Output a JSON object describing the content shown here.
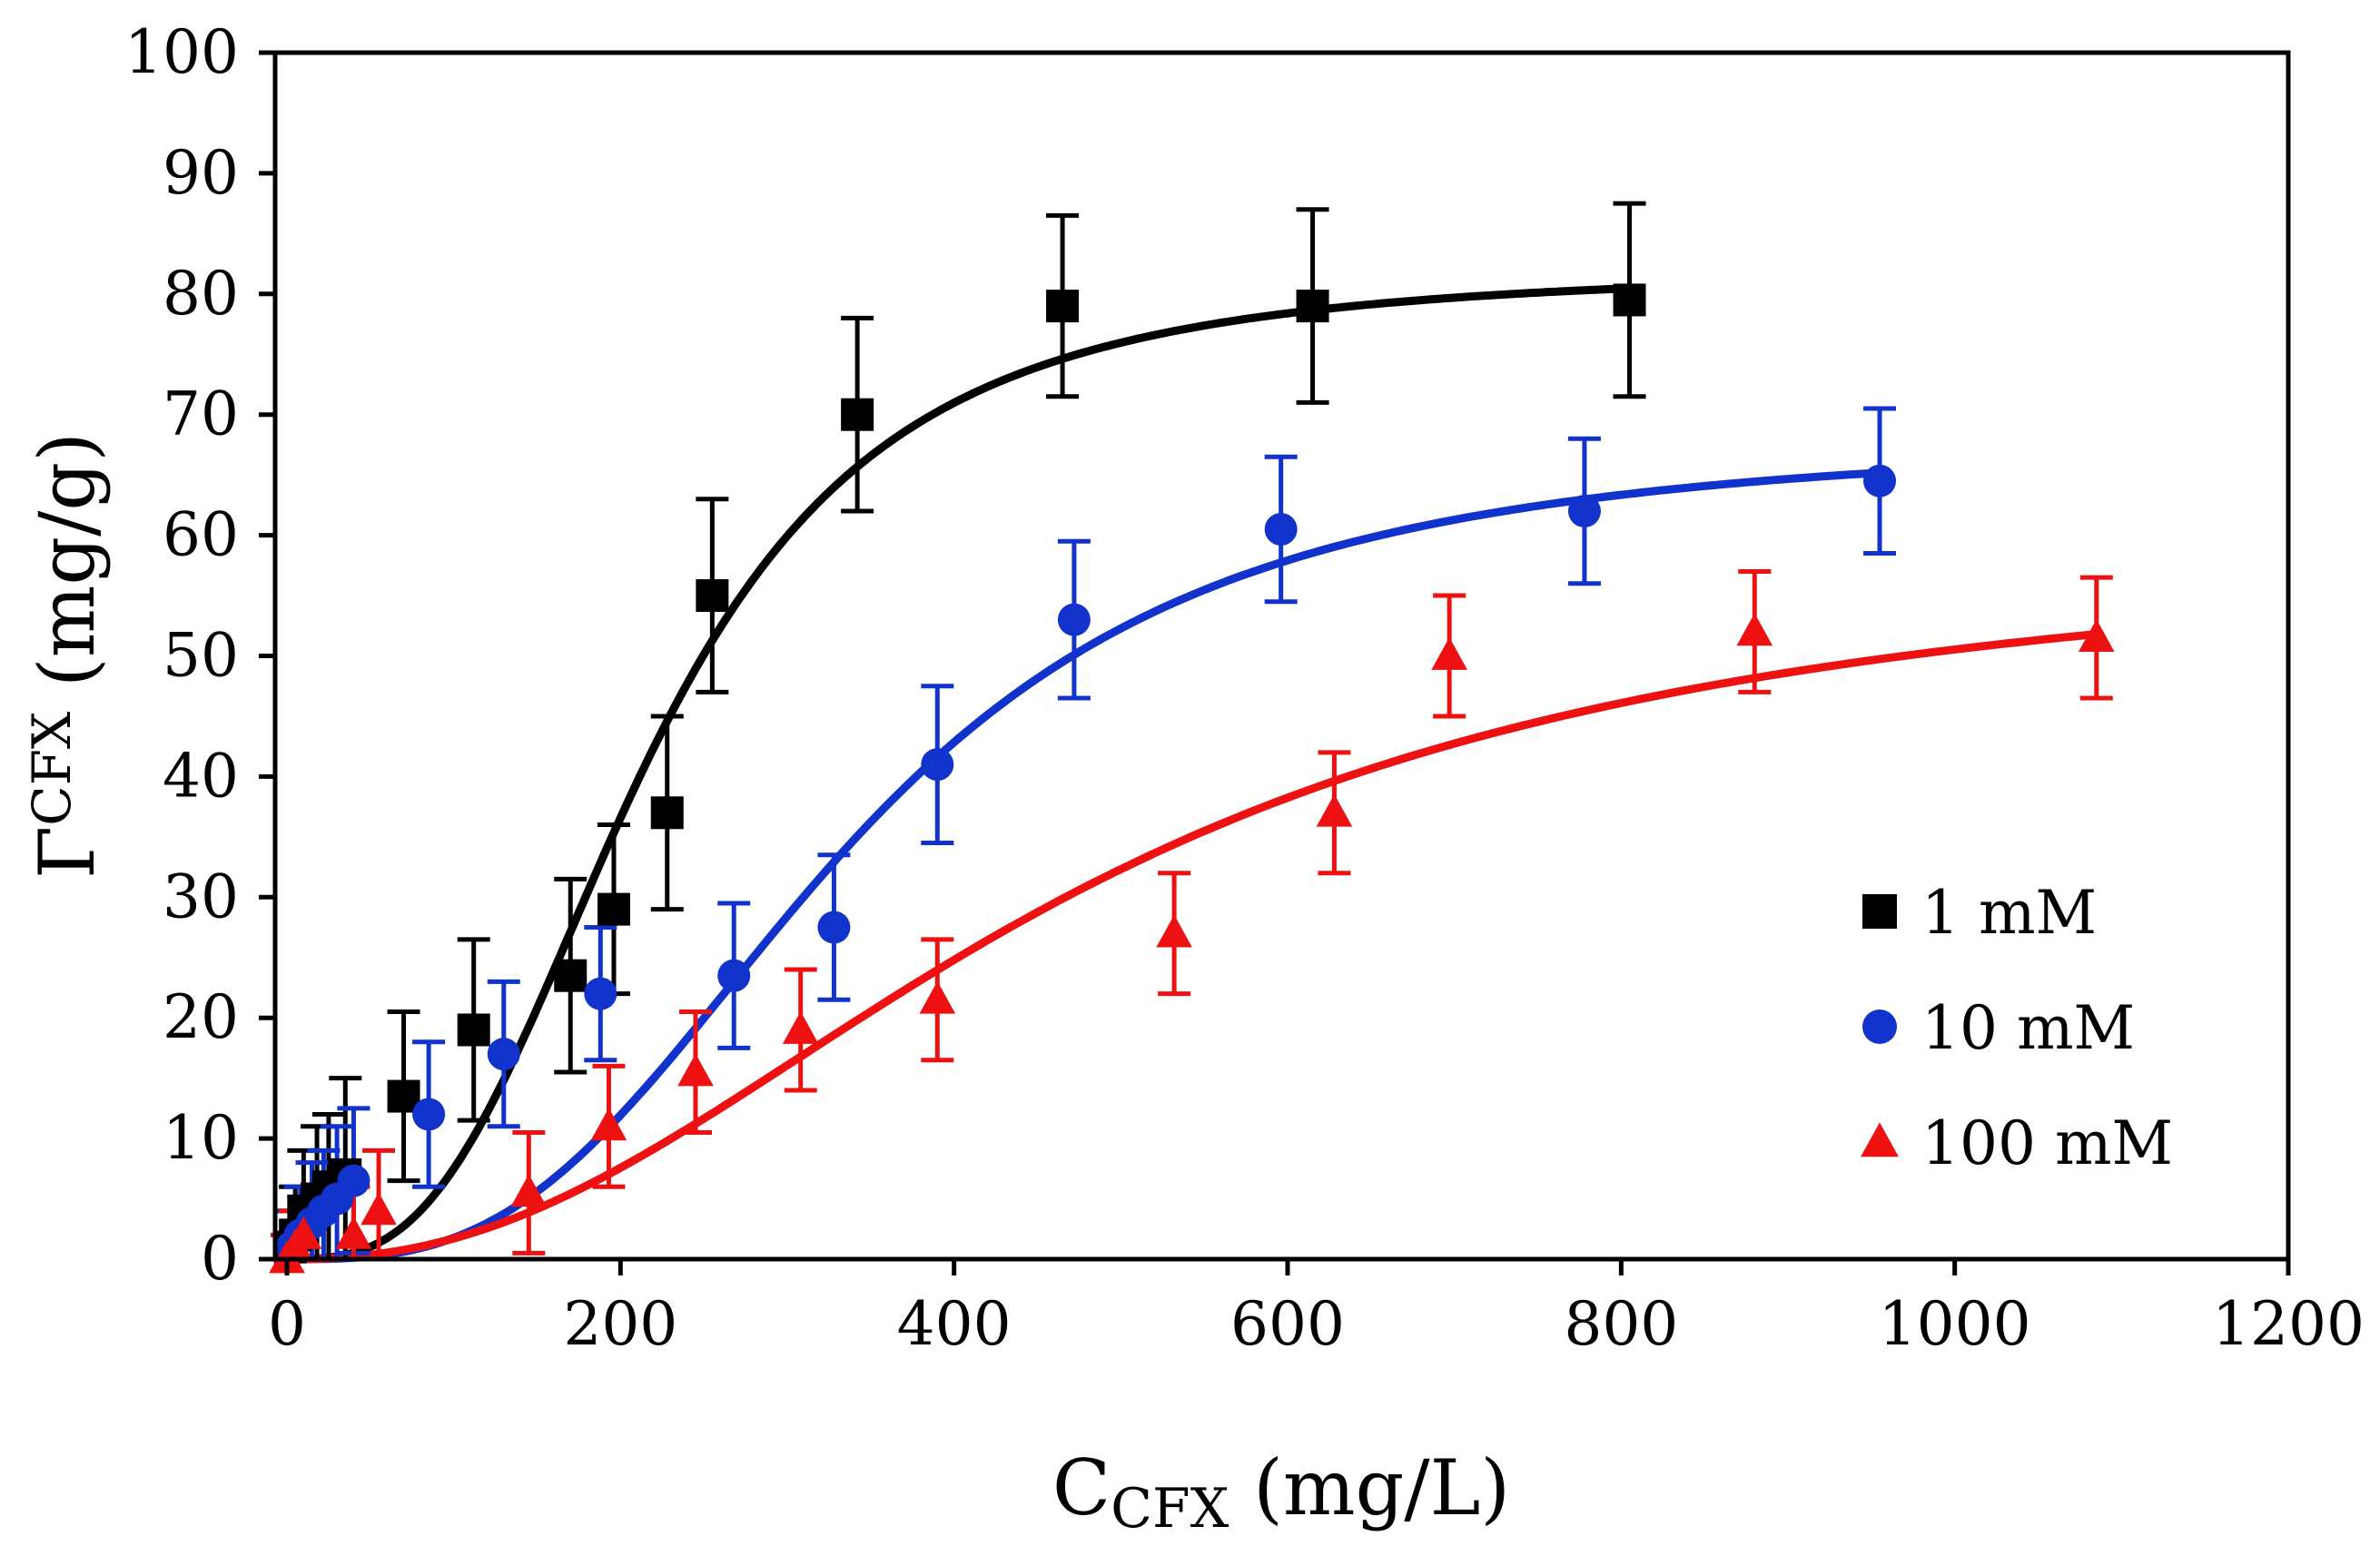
{
  "chart_data": {
    "type": "scatter",
    "xlabel_main": "C",
    "xlabel_sub": "CFX",
    "xlabel_units": " (mg/L)",
    "ylabel_main": "Γ",
    "ylabel_sup": "CFX",
    "ylabel_units": " (mg/g)",
    "xlim": [
      0,
      1200
    ],
    "ylim": [
      0,
      100
    ],
    "x_ticks": [
      0,
      200,
      400,
      600,
      800,
      1000,
      1200
    ],
    "y_ticks": [
      0,
      10,
      20,
      30,
      40,
      50,
      60,
      70,
      80,
      90,
      100
    ],
    "x_tick_labels": [
      "0",
      "200",
      "400",
      "600",
      "800",
      "1000",
      "1200"
    ],
    "y_tick_labels": [
      "0",
      "10",
      "20",
      "30",
      "40",
      "50",
      "60",
      "70",
      "80",
      "90",
      "100"
    ],
    "legend_position": "center-right",
    "series": [
      {
        "name": "1 mM",
        "marker": "square",
        "color": "#000000",
        "x": [
          2,
          5,
          10,
          18,
          25,
          35,
          70,
          112,
          170,
          196,
          228,
          255,
          342,
          465,
          615,
          805
        ],
        "y": [
          1,
          2,
          4,
          5,
          6,
          7,
          13.5,
          19,
          23.5,
          29,
          37,
          55,
          70,
          79,
          79,
          79.5
        ],
        "err": [
          3,
          4,
          5,
          6,
          6,
          8,
          7,
          7.5,
          8,
          7,
          8,
          8,
          8,
          7.5,
          8,
          8
        ],
        "fit": {
          "qmax": 82,
          "k": 215,
          "n": 3.0
        }
      },
      {
        "name": "10 mM",
        "marker": "circle",
        "color": "#1133cc",
        "x": [
          3,
          8,
          15,
          22,
          30,
          40,
          85,
          130,
          188,
          268,
          328,
          390,
          472,
          596,
          778,
          955
        ],
        "y": [
          1,
          2,
          3,
          4,
          5,
          6.5,
          12,
          17,
          22,
          23.5,
          27.5,
          41,
          53,
          60.5,
          62,
          64.5
        ],
        "err": [
          3,
          4,
          5,
          5,
          6,
          6,
          6,
          6,
          5.5,
          6,
          6,
          6.5,
          6.5,
          6,
          6,
          6
        ],
        "fit": {
          "qmax": 68,
          "k": 335,
          "n": 3.0
        }
      },
      {
        "name": "100 mM",
        "marker": "triangle",
        "color": "#ee1111",
        "x": [
          0,
          5,
          10,
          40,
          55,
          145,
          193,
          245,
          308,
          390,
          532,
          628,
          697,
          880,
          1085
        ],
        "y": [
          0,
          1,
          2,
          2,
          4,
          5.5,
          11,
          15.5,
          19,
          21.5,
          27,
          37,
          50,
          52,
          51.5
        ],
        "err": [
          2,
          3,
          3,
          4,
          5,
          5,
          5,
          5,
          5,
          5,
          5,
          5,
          5,
          5,
          5
        ],
        "fit": {
          "qmax": 59,
          "k": 460,
          "n": 2.3
        }
      }
    ]
  }
}
